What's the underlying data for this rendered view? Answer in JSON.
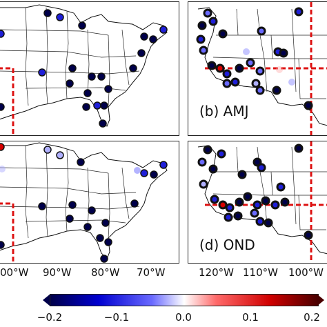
{
  "panels": {
    "a": {
      "label": ""
    },
    "b": {
      "label": "(b) AMJ"
    },
    "c": {
      "label": ""
    },
    "d": {
      "label": "(d) OND"
    }
  },
  "x_axis_left": [
    "00°W",
    "90°W",
    "80°W",
    "70°W"
  ],
  "x_axis_right": [
    "120°W",
    "110°W",
    "100°W"
  ],
  "colorbar": {
    "ticks": [
      "−0.2",
      "−0.1",
      "0.0",
      "0.1",
      "0.2"
    ],
    "min": -0.2,
    "max": 0.2
  },
  "colors": {
    "dark_blue": "#00004a",
    "blue": "#1f1fd8",
    "light_blue": "#b0b0ff",
    "red": "#d80000",
    "divider": "#dd1111"
  }
}
